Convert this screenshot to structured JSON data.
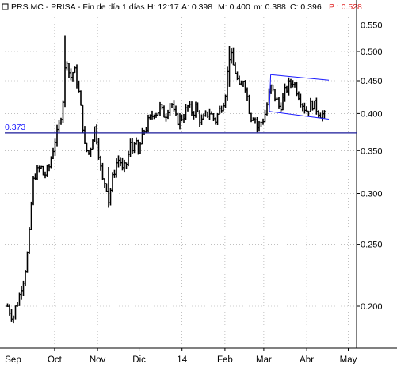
{
  "header": {
    "symbol": "PRS.MC - PRISA - Fin de día 1 días",
    "H": "H: 12:17",
    "A": "A: 0.398",
    "M": "M: 0.400",
    "m": "m: 0.388",
    "C": "C: 0.396",
    "P": "P : 0.528"
  },
  "colors": {
    "price": "#000000",
    "channel": "#1a1aff",
    "support": "#1a1a99",
    "header_alert": "#e02020",
    "axis": "#000000"
  },
  "chart_data": {
    "type": "ohlc",
    "title": "PRS.MC - PRISA - Fin de día 1 días",
    "xlabel": "",
    "ylabel": "",
    "y_scale": "log",
    "ylim": [
      0.172,
      0.565
    ],
    "yticks": [
      0.2,
      0.25,
      0.3,
      0.35,
      0.4,
      0.45,
      0.5,
      0.55
    ],
    "ytick_labels": [
      "0.200",
      "0.250",
      "0.300",
      "0.350",
      "0.400",
      "0.450",
      "0.500",
      "0.550"
    ],
    "x_tick_labels": [
      "Sep",
      "Oct",
      "Nov",
      "Dic",
      "14",
      "Feb",
      "Mar",
      "Abr",
      "May"
    ],
    "x_tick_days": [
      0,
      30,
      61,
      91,
      122,
      153,
      181,
      212,
      242
    ],
    "x_range_days": [
      -6,
      248
    ],
    "support_level": {
      "label": "0.373",
      "value": 0.373
    },
    "channel": {
      "upper": [
        {
          "day": 186,
          "value": 0.46
        },
        {
          "day": 228,
          "value": 0.451
        }
      ],
      "lower": [
        {
          "day": 185,
          "value": 0.403
        },
        {
          "day": 228,
          "value": 0.392
        }
      ]
    },
    "price_path": [
      [
        -4,
        0.2
      ],
      [
        0,
        0.192
      ],
      [
        2,
        0.2
      ],
      [
        4,
        0.205
      ],
      [
        6,
        0.215
      ],
      [
        8,
        0.223
      ],
      [
        10,
        0.237
      ],
      [
        12,
        0.262
      ],
      [
        13,
        0.285
      ],
      [
        14,
        0.31
      ],
      [
        16,
        0.322
      ],
      [
        18,
        0.325
      ],
      [
        20,
        0.33
      ],
      [
        22,
        0.32
      ],
      [
        24,
        0.323
      ],
      [
        26,
        0.33
      ],
      [
        28,
        0.345
      ],
      [
        30,
        0.362
      ],
      [
        32,
        0.372
      ],
      [
        34,
        0.39
      ],
      [
        36,
        0.42
      ],
      [
        37,
        0.455
      ],
      [
        38,
        0.48
      ],
      [
        39,
        0.49
      ],
      [
        40,
        0.466
      ],
      [
        42,
        0.455
      ],
      [
        44,
        0.47
      ],
      [
        46,
        0.45
      ],
      [
        47,
        0.44
      ],
      [
        48,
        0.42
      ],
      [
        50,
        0.39
      ],
      [
        52,
        0.35
      ],
      [
        54,
        0.35
      ],
      [
        55,
        0.345
      ],
      [
        57,
        0.365
      ],
      [
        59,
        0.38
      ],
      [
        61,
        0.36
      ],
      [
        63,
        0.33
      ],
      [
        65,
        0.31
      ],
      [
        67,
        0.315
      ],
      [
        68,
        0.3
      ],
      [
        69,
        0.292
      ],
      [
        71,
        0.31
      ],
      [
        73,
        0.325
      ],
      [
        75,
        0.337
      ],
      [
        77,
        0.34
      ],
      [
        79,
        0.325
      ],
      [
        81,
        0.33
      ],
      [
        83,
        0.34
      ],
      [
        84,
        0.36
      ],
      [
        86,
        0.35
      ],
      [
        88,
        0.37
      ],
      [
        90,
        0.34
      ],
      [
        92,
        0.36
      ],
      [
        94,
        0.375
      ],
      [
        96,
        0.38
      ],
      [
        98,
        0.39
      ],
      [
        100,
        0.395
      ],
      [
        102,
        0.405
      ],
      [
        104,
        0.4
      ],
      [
        106,
        0.41
      ],
      [
        108,
        0.4
      ],
      [
        110,
        0.398
      ],
      [
        112,
        0.41
      ],
      [
        114,
        0.42
      ],
      [
        116,
        0.4
      ],
      [
        118,
        0.39
      ],
      [
        120,
        0.392
      ],
      [
        122,
        0.395
      ],
      [
        124,
        0.4
      ],
      [
        126,
        0.41
      ],
      [
        128,
        0.405
      ],
      [
        130,
        0.402
      ],
      [
        132,
        0.41
      ],
      [
        134,
        0.395
      ],
      [
        136,
        0.388
      ],
      [
        138,
        0.392
      ],
      [
        140,
        0.4
      ],
      [
        142,
        0.402
      ],
      [
        144,
        0.395
      ],
      [
        146,
        0.39
      ],
      [
        148,
        0.4
      ],
      [
        150,
        0.41
      ],
      [
        152,
        0.42
      ],
      [
        154,
        0.44
      ],
      [
        155,
        0.47
      ],
      [
        156,
        0.49
      ],
      [
        157,
        0.5
      ],
      [
        158,
        0.48
      ],
      [
        160,
        0.47
      ],
      [
        162,
        0.45
      ],
      [
        163,
        0.44
      ],
      [
        164,
        0.43
      ],
      [
        166,
        0.455
      ],
      [
        168,
        0.44
      ],
      [
        170,
        0.41
      ],
      [
        172,
        0.395
      ],
      [
        174,
        0.4
      ],
      [
        176,
        0.38
      ],
      [
        178,
        0.385
      ],
      [
        180,
        0.39
      ],
      [
        182,
        0.4
      ],
      [
        184,
        0.42
      ],
      [
        186,
        0.44
      ],
      [
        188,
        0.43
      ],
      [
        190,
        0.42
      ],
      [
        192,
        0.41
      ],
      [
        194,
        0.415
      ],
      [
        196,
        0.43
      ],
      [
        198,
        0.44
      ],
      [
        200,
        0.445
      ],
      [
        202,
        0.45
      ],
      [
        204,
        0.44
      ],
      [
        206,
        0.43
      ],
      [
        208,
        0.42
      ],
      [
        210,
        0.41
      ],
      [
        212,
        0.405
      ],
      [
        214,
        0.41
      ],
      [
        216,
        0.415
      ],
      [
        218,
        0.41
      ],
      [
        220,
        0.405
      ],
      [
        222,
        0.4
      ],
      [
        224,
        0.398
      ],
      [
        226,
        0.392
      ]
    ],
    "ranges": [
      {
        "days": [
          37,
          38
        ],
        "high": 0.53,
        "low": 0.42
      },
      {
        "days": [
          155,
          157
        ],
        "high": 0.51,
        "low": 0.44
      },
      {
        "days": [
          165,
          166
        ],
        "high": 0.515,
        "low": 0.42
      },
      {
        "days": [
          55,
          56
        ],
        "high": 0.4,
        "low": 0.34
      },
      {
        "days": [
          68,
          69
        ],
        "high": 0.33,
        "low": 0.285
      }
    ]
  }
}
